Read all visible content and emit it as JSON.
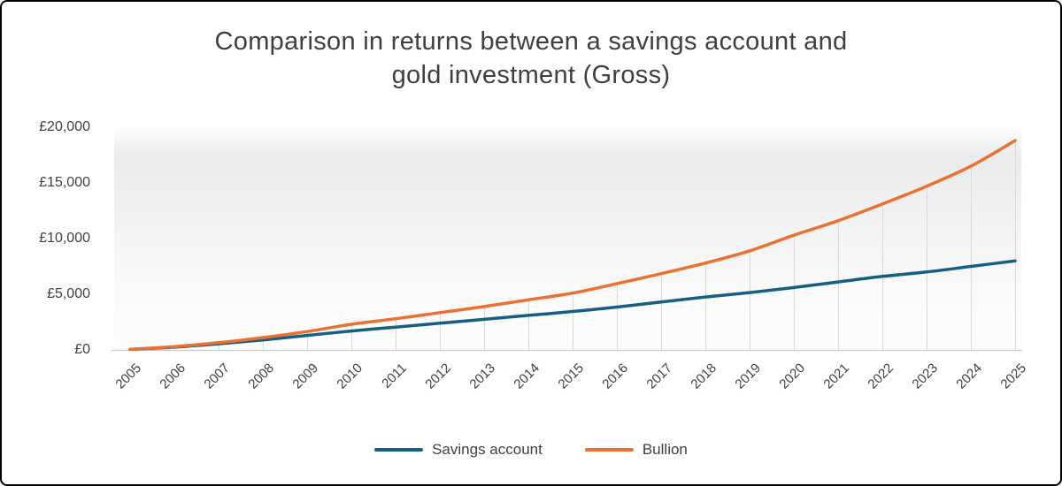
{
  "title": {
    "line1": "Comparison in returns between a savings account and",
    "line2": "gold investment (Gross)"
  },
  "chart_data": {
    "type": "line",
    "title": "Comparison in returns between a savings account and gold investment (Gross)",
    "x": [
      2005,
      2006,
      2007,
      2008,
      2009,
      2010,
      2011,
      2012,
      2013,
      2014,
      2015,
      2016,
      2017,
      2018,
      2019,
      2020,
      2021,
      2022,
      2023,
      2024,
      2025
    ],
    "series": [
      {
        "name": "Savings account",
        "color": "#156082",
        "values": [
          50,
          250,
          550,
          900,
          1300,
          1700,
          2050,
          2400,
          2750,
          3100,
          3450,
          3850,
          4300,
          4750,
          5150,
          5600,
          6100,
          6600,
          7000,
          7500,
          8000
        ]
      },
      {
        "name": "Bullion",
        "color": "#E97132",
        "values": [
          50,
          300,
          650,
          1100,
          1650,
          2300,
          2800,
          3350,
          3900,
          4500,
          5100,
          5950,
          6850,
          7800,
          8900,
          10300,
          11600,
          13100,
          14700,
          16500,
          18800
        ]
      }
    ],
    "xlabel": "",
    "ylabel": "",
    "ylim": [
      0,
      20000
    ],
    "yticks": [
      0,
      5000,
      10000,
      15000,
      20000
    ],
    "ytick_labels": [
      "£0",
      "£5,000",
      "£10,000",
      "£15,000",
      "£20,000"
    ],
    "grid": "vertical-droplines-from-bullion-series",
    "legend_position": "bottom"
  },
  "colors": {
    "dropline": "#d9d9d9",
    "axis_line": "#c9c9c9",
    "title_text": "#3f3f3f",
    "axis_text": "#404040",
    "plot_fill_top": "#ebebeb",
    "frame_border": "#000000"
  }
}
